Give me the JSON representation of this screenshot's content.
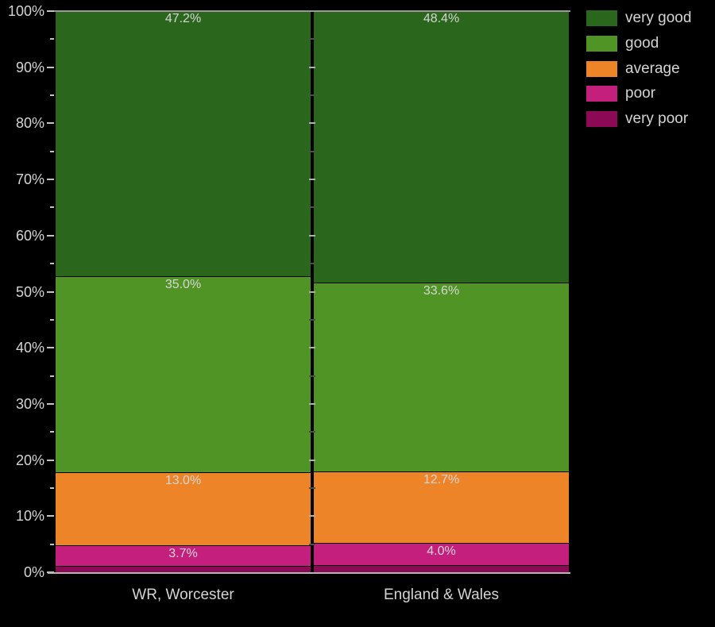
{
  "figure": {
    "background": "#000000",
    "text_color": "#d4d4d4",
    "axis_color": "#c2c2c2"
  },
  "chart_data": {
    "type": "bar",
    "subtype": "stacked-percent-column",
    "title": "",
    "categories": [
      "WR, Worcester",
      "England & Wales"
    ],
    "series": [
      {
        "name": "very good",
        "color": "#2a661c",
        "values": [
          47.2,
          48.4
        ],
        "labels": [
          "47.2%",
          "48.4%"
        ]
      },
      {
        "name": "good",
        "color": "#4f9424",
        "values": [
          35.0,
          33.6
        ],
        "labels": [
          "35.0%",
          "33.6%"
        ]
      },
      {
        "name": "average",
        "color": "#ee8428",
        "values": [
          13.0,
          12.7
        ],
        "labels": [
          "13.0%",
          "12.7%"
        ]
      },
      {
        "name": "poor",
        "color": "#c51f7e",
        "values": [
          3.7,
          4.0
        ],
        "labels": [
          "3.7%",
          "4.0%"
        ]
      },
      {
        "name": "very poor",
        "color": "#8c0a55",
        "values": [
          1.1,
          1.3
        ],
        "labels": [
          "",
          ""
        ]
      }
    ],
    "ylim": [
      0,
      100
    ],
    "ytick_labels": [
      "100%",
      "90%",
      "80%",
      "70%",
      "60%",
      "50%",
      "40%",
      "30%",
      "20%",
      "10%",
      "0%"
    ],
    "ytick_values": [
      100,
      90,
      80,
      70,
      60,
      50,
      40,
      30,
      20,
      10,
      0
    ],
    "minor_tick_values": [
      95,
      85,
      75,
      65,
      55,
      45,
      35,
      25,
      15,
      5
    ],
    "grid": false,
    "legend_position": "top-right",
    "xlabel": "",
    "ylabel": ""
  }
}
